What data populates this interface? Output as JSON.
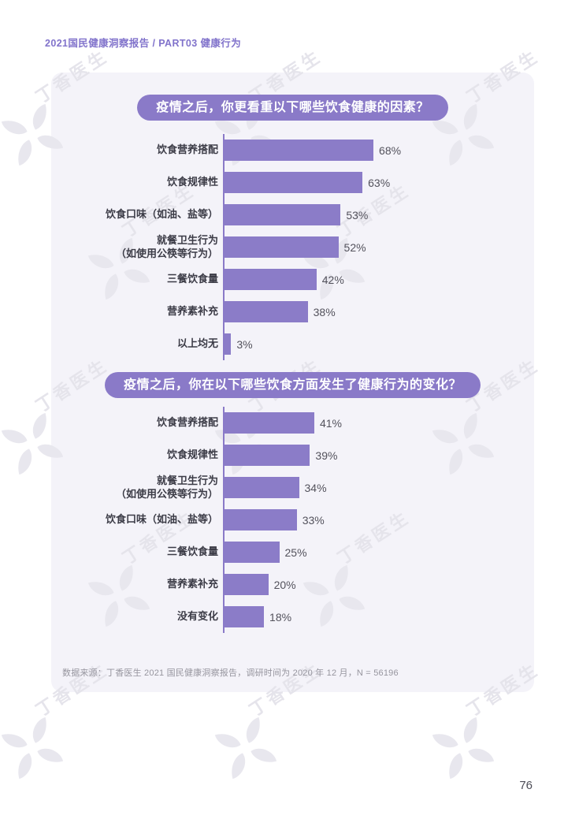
{
  "page": {
    "header": "2021国民健康洞察报告 / PART03 健康行为",
    "watermark_text": "丁香医生",
    "footnote": "数据来源：丁香医生 2021 国民健康洞察报告，调研时间为 2020 年 12 月，N = 56196",
    "page_number": "76"
  },
  "colors": {
    "accent_purple": "#8a7ac8",
    "bar_purple": "#8b7cc8",
    "card_background": "#f4f3f9",
    "header_text": "#8173cb",
    "watermark_gray": "#e5e4eb"
  },
  "chart_data": [
    {
      "type": "bar",
      "orientation": "horizontal",
      "title": "疫情之后，你更看重以下哪些饮食健康的因素？",
      "categories": [
        "饮食营养搭配",
        "饮食规律性",
        "饮食口味（如油、盐等）",
        "就餐卫生行为\n（如使用公筷等行为）",
        "三餐饮食量",
        "营养素补充",
        "以上均无"
      ],
      "values": [
        68,
        63,
        53,
        52,
        42,
        38,
        3
      ],
      "value_labels": [
        "68%",
        "63%",
        "53%",
        "52%",
        "42%",
        "38%",
        "3%"
      ],
      "xlim": [
        0,
        100
      ],
      "unit": "%",
      "grid": false,
      "legend": false
    },
    {
      "type": "bar",
      "orientation": "horizontal",
      "title": "疫情之后，你在以下哪些饮食方面发生了健康行为的变化？",
      "categories": [
        "饮食营养搭配",
        "饮食规律性",
        "就餐卫生行为\n（如使用公筷等行为）",
        "饮食口味（如油、盐等）",
        "三餐饮食量",
        "营养素补充",
        "没有变化"
      ],
      "values": [
        41,
        39,
        34,
        33,
        25,
        20,
        18
      ],
      "value_labels": [
        "41%",
        "39%",
        "34%",
        "33%",
        "25%",
        "20%",
        "18%"
      ],
      "xlim": [
        0,
        100
      ],
      "unit": "%",
      "grid": false,
      "legend": false
    }
  ]
}
